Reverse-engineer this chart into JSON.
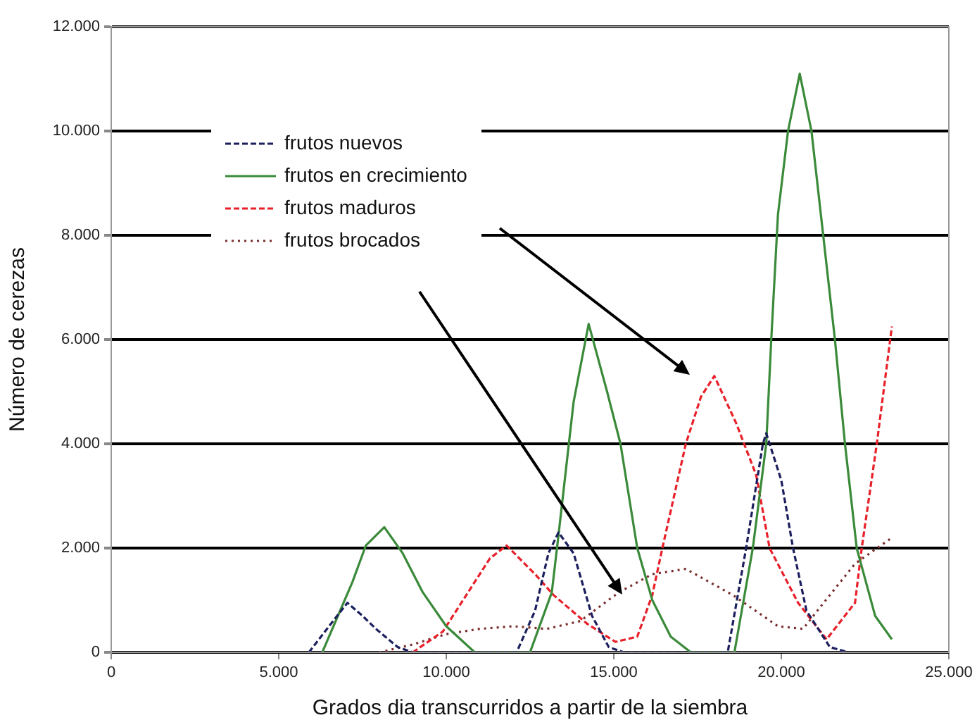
{
  "chart_data": {
    "type": "line",
    "xlabel": "Grados dia transcurridos a partir de la siembra",
    "ylabel": "Número de cerezas",
    "xlim": [
      0,
      25000
    ],
    "xticks": [
      0,
      {
        "value": 5000,
        "label": "5.000"
      },
      {
        "value": 10000,
        "label": "10.000"
      },
      {
        "value": 15000,
        "label": "15.000"
      },
      {
        "value": 20000,
        "label": "20.000"
      },
      {
        "value": 25000,
        "label": "25.000"
      }
    ],
    "ylim": [
      0,
      12000
    ],
    "yticks": [
      0,
      {
        "value": 2000,
        "label": "2.000"
      },
      {
        "value": 4000,
        "label": "4.000"
      },
      {
        "value": 6000,
        "label": "6.000"
      },
      {
        "value": 8000,
        "label": "8.000"
      },
      {
        "value": 10000,
        "label": "10.000"
      },
      {
        "value": 12000,
        "label": "12.000"
      }
    ],
    "grid": "y",
    "legend": "top left",
    "marker": "none",
    "series": [
      {
        "name": "frutos nuevos",
        "color": "#1c1f5e",
        "line_style": "dashed",
        "x": [
          5900,
          6500,
          7050,
          7500,
          7900,
          8550,
          9000,
          12100,
          12650,
          13050,
          13350,
          13800,
          14350,
          14850,
          15300,
          18400,
          18950,
          19450,
          19550,
          20000,
          20350,
          20750,
          21450,
          22000
        ],
        "values": [
          0,
          500,
          950,
          700,
          450,
          100,
          0,
          0,
          800,
          1900,
          2300,
          1900,
          700,
          100,
          0,
          0,
          2000,
          4000,
          4200,
          3300,
          2000,
          800,
          100,
          0
        ]
      },
      {
        "name": "frutos en crecimiento",
        "color": "#3a8a3a",
        "line_style": "solid",
        "x": [
          6300,
          7200,
          7600,
          8150,
          8700,
          9300,
          10000,
          10850,
          12500,
          13150,
          13350,
          13800,
          14250,
          14800,
          15200,
          15700,
          16150,
          16700,
          17300,
          18600,
          19150,
          19550,
          19700,
          19900,
          20200,
          20550,
          20900,
          21250,
          21600,
          21900,
          22250,
          22800,
          23300
        ],
        "values": [
          0,
          1350,
          2050,
          2400,
          1900,
          1150,
          500,
          0,
          0,
          1150,
          2250,
          4800,
          6300,
          5000,
          4000,
          2000,
          1000,
          300,
          0,
          0,
          2000,
          4000,
          6000,
          8400,
          10000,
          11100,
          10000,
          8000,
          6000,
          4000,
          2000,
          700,
          250
        ]
      },
      {
        "name": "frutos maduros",
        "color": "#e8202a",
        "line_style": "dashed",
        "x": [
          9000,
          9900,
          10650,
          11300,
          11800,
          12650,
          13200,
          14200,
          15050,
          15700,
          16150,
          16450,
          17150,
          17600,
          18000,
          18650,
          19250,
          19650,
          20500,
          21350,
          22200,
          22400,
          22850,
          23300
        ],
        "values": [
          0,
          400,
          1150,
          1800,
          2050,
          1500,
          1100,
          550,
          200,
          300,
          1100,
          2000,
          4000,
          4900,
          5300,
          4400,
          3400,
          2000,
          950,
          250,
          950,
          2000,
          4000,
          6250
        ]
      },
      {
        "name": "frutos brocados",
        "color": "#7a2e2e",
        "line_style": "dotted",
        "x": [
          8000,
          9000,
          10000,
          11000,
          12000,
          13000,
          14000,
          15150,
          16150,
          17150,
          18550,
          19900,
          20650,
          21200,
          22200,
          23300
        ],
        "values": [
          0,
          150,
          350,
          450,
          500,
          450,
          600,
          1150,
          1500,
          1600,
          1100,
          500,
          450,
          900,
          1700,
          2200
        ]
      }
    ]
  }
}
